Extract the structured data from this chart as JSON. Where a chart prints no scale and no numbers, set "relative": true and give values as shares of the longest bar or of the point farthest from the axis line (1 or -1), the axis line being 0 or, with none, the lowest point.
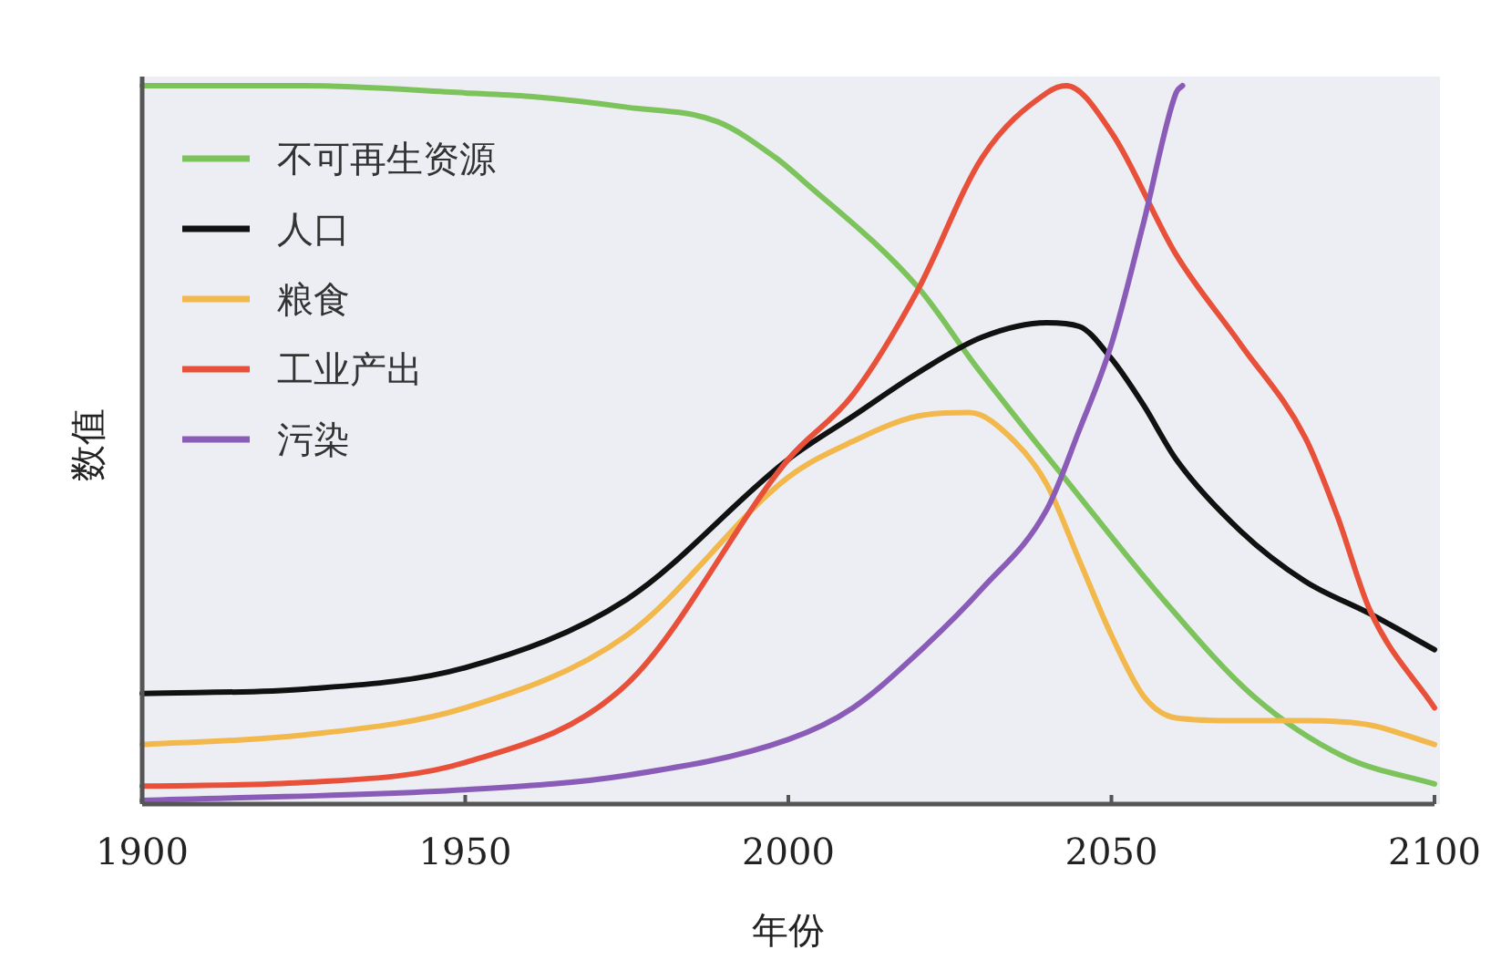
{
  "chart_data": {
    "type": "line",
    "xlabel": "年份",
    "ylabel": "数值",
    "relative": true,
    "xlim": [
      1900,
      2100
    ],
    "xticks": [
      1900,
      1950,
      2000,
      2050,
      2100
    ],
    "legend": "top left",
    "series": [
      {
        "name": "不可再生资源",
        "color": "#7dc35b",
        "x": [
          1900,
          1925,
          1950,
          1960,
          1975,
          1989,
          1998,
          2002,
          2020,
          2029,
          2044,
          2058,
          2072,
          2086,
          2100
        ],
        "values": [
          1.0,
          1.0,
          0.99,
          0.985,
          0.97,
          0.95,
          0.9,
          0.87,
          0.72,
          0.61,
          0.44,
          0.285,
          0.15,
          0.066,
          0.028
        ]
      },
      {
        "name": "人口",
        "color": "#111111",
        "x": [
          1900,
          1925,
          1950,
          1975,
          2000,
          2010,
          2020,
          2030,
          2040,
          2045,
          2050,
          2055,
          2060,
          2070,
          2080,
          2090,
          2100
        ],
        "values": [
          0.154,
          0.16,
          0.19,
          0.285,
          0.48,
          0.54,
          0.6,
          0.65,
          0.67,
          0.665,
          0.62,
          0.555,
          0.48,
          0.38,
          0.31,
          0.265,
          0.215
        ]
      },
      {
        "name": "粮食",
        "color": "#f2b84b",
        "x": [
          1900,
          1925,
          1950,
          1975,
          2000,
          2010,
          2020,
          2028,
          2035,
          2040,
          2045,
          2050,
          2055,
          2060,
          2070,
          2080,
          2090,
          2100
        ],
        "values": [
          0.083,
          0.096,
          0.134,
          0.235,
          0.455,
          0.505,
          0.54,
          0.545,
          0.505,
          0.445,
          0.34,
          0.235,
          0.15,
          0.12,
          0.116,
          0.116,
          0.11,
          0.083
        ]
      },
      {
        "name": "工业产出",
        "color": "#e8503a",
        "x": [
          1900,
          1925,
          1950,
          1975,
          2000,
          2010,
          2020,
          2030,
          2040,
          2043,
          2050,
          2060,
          2070,
          2080,
          2085,
          2090,
          2100
        ],
        "values": [
          0.025,
          0.03,
          0.058,
          0.167,
          0.48,
          0.57,
          0.715,
          0.9,
          0.99,
          1.0,
          0.935,
          0.765,
          0.64,
          0.51,
          0.4,
          0.27,
          0.134
        ]
      },
      {
        "name": "污染",
        "color": "#8a5cb8",
        "x": [
          1900,
          1950,
          1975,
          2000,
          2010,
          2020,
          2030,
          2040,
          2045,
          2050,
          2055,
          2060,
          2061
        ],
        "values": [
          0.005,
          0.02,
          0.04,
          0.09,
          0.134,
          0.21,
          0.3,
          0.41,
          0.52,
          0.64,
          0.81,
          0.99,
          1.0
        ]
      }
    ]
  }
}
